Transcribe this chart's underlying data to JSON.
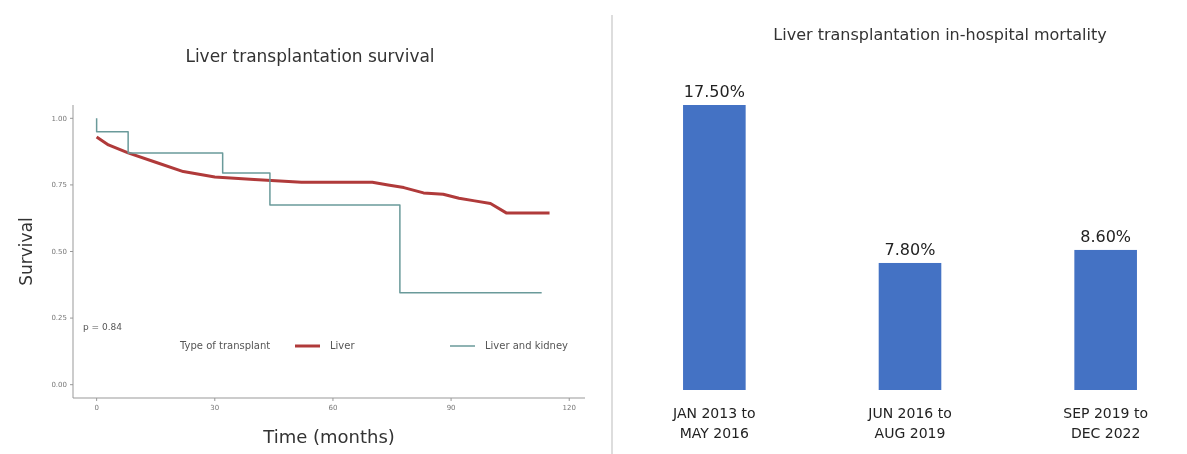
{
  "chart_data": [
    {
      "type": "line",
      "title": "Liver transplantation survival",
      "xlabel": "Time (months)",
      "ylabel": "Survival",
      "legend_title": "Type of transplant",
      "legend": "bottom",
      "grid": false,
      "xlim": [
        -6,
        124
      ],
      "ylim": [
        -0.05,
        1.05
      ],
      "xticks": [
        0,
        30,
        60,
        90,
        120
      ],
      "yticks": [
        {
          "value": 0,
          "label": "0.00"
        },
        {
          "value": 0.25,
          "label": "0.25"
        },
        {
          "value": 0.5,
          "label": "0.50"
        },
        {
          "value": 0.75,
          "label": "0.75"
        },
        {
          "value": 1,
          "label": "1.00"
        }
      ],
      "annotations": [
        "p = 0.84"
      ],
      "series": [
        {
          "name": "Liver",
          "color": "#b03a3a",
          "type": "line",
          "x": [
            0,
            3,
            8,
            15,
            22,
            30,
            40,
            52,
            62,
            70,
            74,
            78,
            83,
            88,
            92,
            96,
            100,
            104,
            110,
            115
          ],
          "values": [
            0.93,
            0.9,
            0.87,
            0.835,
            0.8,
            0.78,
            0.77,
            0.76,
            0.76,
            0.76,
            0.75,
            0.74,
            0.72,
            0.715,
            0.7,
            0.69,
            0.68,
            0.645,
            0.645,
            0.645
          ]
        },
        {
          "name": "Liver and kidney",
          "color": "#6a9a9a",
          "type": "step",
          "x": [
            0,
            0,
            8,
            32,
            44,
            77,
            113
          ],
          "values": [
            1,
            0.95,
            0.87,
            0.795,
            0.675,
            0.345,
            0.345
          ]
        }
      ]
    },
    {
      "type": "bar",
      "title": "Liver transplantation in-hospital mortality",
      "categories": [
        "JAN 2013 to MAY 2016",
        "JUN 2016 to AUG 2019",
        "SEP 2019 to DEC 2022"
      ],
      "values": [
        17.5,
        7.8,
        8.6
      ],
      "value_labels": [
        "17.50%",
        "7.80%",
        "8.60%"
      ],
      "color": "#4472c4"
    }
  ]
}
